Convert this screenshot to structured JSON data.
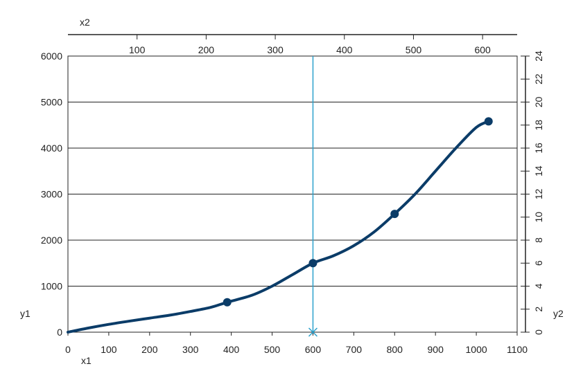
{
  "chart_data": {
    "type": "line",
    "xlabel": "x1",
    "x2label": "x2",
    "ylabel": "y1",
    "y2label": "y2",
    "xlim": [
      0,
      1100
    ],
    "x2lim": [
      0,
      650
    ],
    "ylim": [
      0,
      6000
    ],
    "y2lim": [
      0,
      24
    ],
    "xticks": [
      0,
      100,
      200,
      300,
      400,
      500,
      600,
      700,
      800,
      900,
      1000,
      1100
    ],
    "x2ticks": [
      100,
      200,
      300,
      400,
      500,
      600
    ],
    "yticks": [
      0,
      1000,
      2000,
      3000,
      4000,
      5000,
      6000
    ],
    "y2ticks": [
      0,
      2,
      4,
      6,
      8,
      10,
      12,
      14,
      16,
      18,
      20,
      22,
      24
    ],
    "grid": "horizontal",
    "series": [
      {
        "color": "#0b3c68",
        "curve": [
          [
            0,
            0
          ],
          [
            50,
            90
          ],
          [
            100,
            170
          ],
          [
            150,
            240
          ],
          [
            200,
            305
          ],
          [
            250,
            370
          ],
          [
            300,
            450
          ],
          [
            350,
            540
          ],
          [
            390,
            650
          ],
          [
            450,
            800
          ],
          [
            500,
            1000
          ],
          [
            550,
            1250
          ],
          [
            600,
            1500
          ],
          [
            650,
            1660
          ],
          [
            700,
            1880
          ],
          [
            750,
            2180
          ],
          [
            800,
            2570
          ],
          [
            850,
            3000
          ],
          [
            900,
            3500
          ],
          [
            950,
            4000
          ],
          [
            1000,
            4450
          ],
          [
            1030,
            4580
          ]
        ],
        "markers": [
          [
            390,
            650
          ],
          [
            600,
            1500
          ],
          [
            800,
            2570
          ],
          [
            1030,
            4580
          ]
        ]
      }
    ],
    "vline": {
      "x": 600,
      "color": "#2aa0cc"
    },
    "cross_marker": {
      "x": 600,
      "y": 0,
      "color": "#2aa0cc"
    }
  }
}
